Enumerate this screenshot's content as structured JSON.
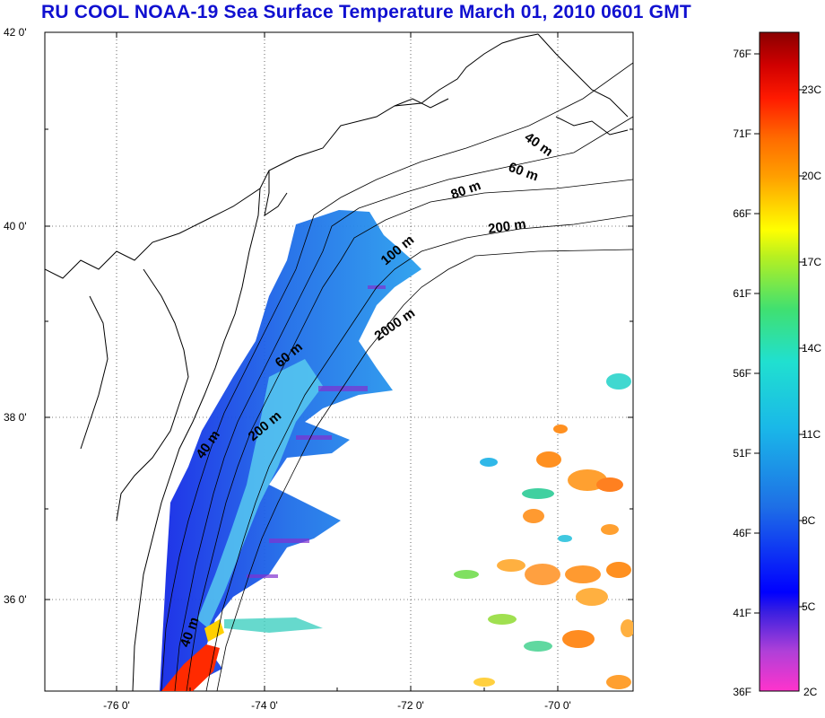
{
  "title": "RU COOL  NOAA-19 Sea Surface Temperature March 01, 2010 0601 GMT",
  "latitude_labels": [
    "42 0'",
    "40 0'",
    "38 0'",
    "36 0'"
  ],
  "longitude_labels": [
    "-76 0'",
    "-74 0'",
    "-72 0'",
    "-70 0'"
  ],
  "contour_labels": [
    "40 m",
    "60 m",
    "80 m",
    "200 m",
    "100 m",
    "2000 m",
    "60 m",
    "200 m",
    "40 m",
    "40 m"
  ],
  "colorbar": {
    "fahrenheit": [
      "76F",
      "71F",
      "66F",
      "61F",
      "56F",
      "51F",
      "46F",
      "41F",
      "36F"
    ],
    "celsius": [
      "23C",
      "20C",
      "17C",
      "14C",
      "11C",
      "8C",
      "5C",
      "2C"
    ]
  },
  "colors": {
    "title": "#1010d0",
    "land_outline": "#000000",
    "grid": "#000000"
  }
}
